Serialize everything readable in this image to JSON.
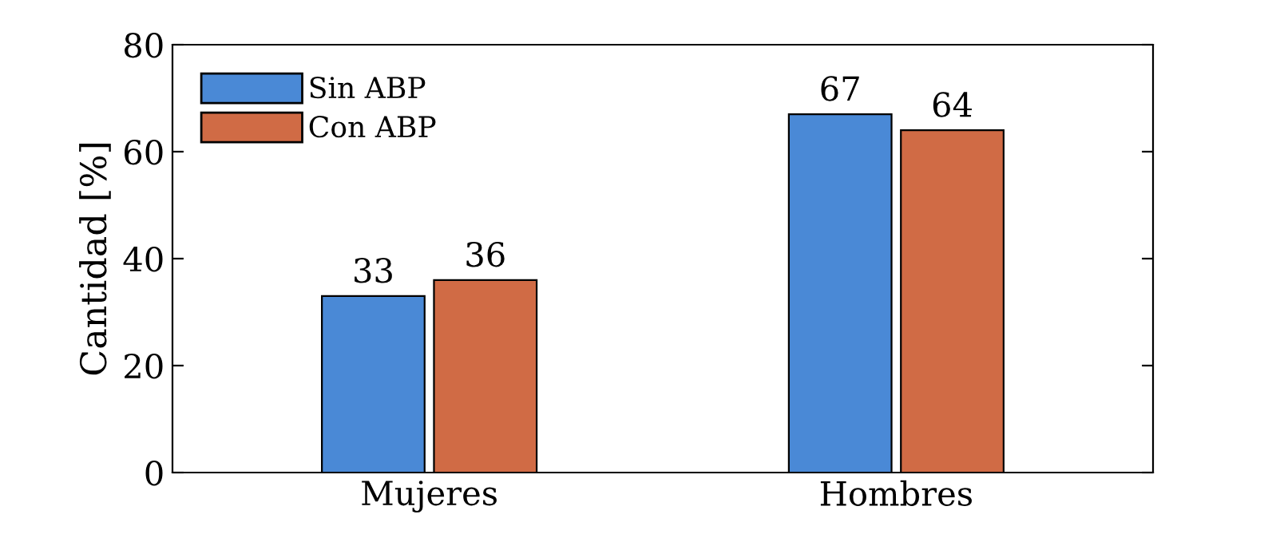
{
  "chart_data": {
    "type": "bar",
    "ylabel": "Cantidad [%]",
    "categories": [
      "Mujeres",
      "Hombres"
    ],
    "series": [
      {
        "name": "Sin ABP",
        "color": "#4a89d6",
        "values": [
          33,
          67
        ]
      },
      {
        "name": "Con ABP",
        "color": "#d06b45",
        "values": [
          36,
          64
        ]
      }
    ],
    "ylim": [
      0,
      80
    ],
    "yticks": [
      0,
      20,
      40,
      60,
      80
    ],
    "data_labels": true,
    "legend": "top left",
    "grid": false
  }
}
